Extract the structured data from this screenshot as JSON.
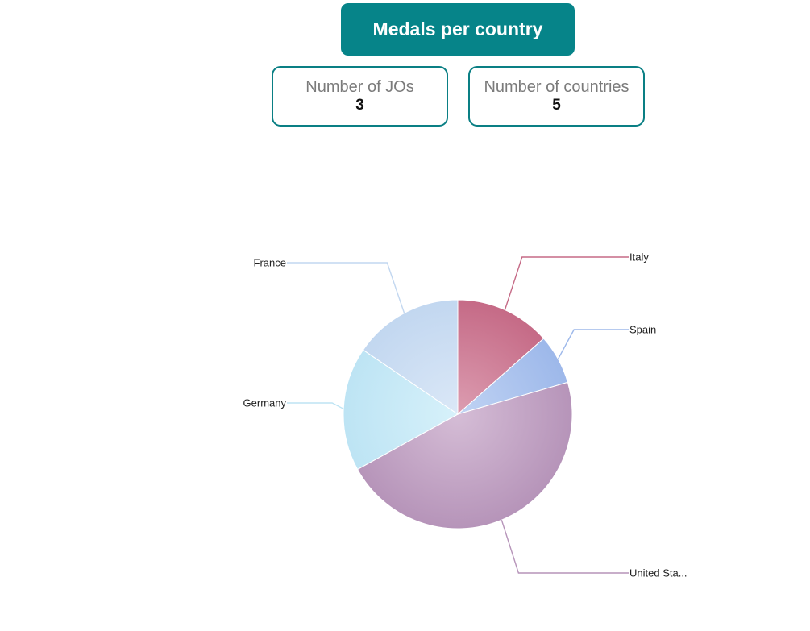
{
  "header": {
    "title": "Medals per country"
  },
  "kpis": {
    "jos_label": "Number of JOs",
    "jos_value": "3",
    "countries_label": "Number of countries",
    "countries_value": "5"
  },
  "chart_data": {
    "type": "pie",
    "title": "",
    "slices": [
      {
        "label": "Italy",
        "display_label": "Italy",
        "value": 13.5,
        "color": "#c56a86",
        "gradient_center": "#dc9db1"
      },
      {
        "label": "Spain",
        "display_label": "Spain",
        "value": 7.0,
        "color": "#9db8ea",
        "gradient_center": "#c0d3f3"
      },
      {
        "label": "United States",
        "display_label": "United Sta...",
        "value": 46.5,
        "color": "#b694b9",
        "gradient_center": "#d5bdd6"
      },
      {
        "label": "Germany",
        "display_label": "Germany",
        "value": 17.5,
        "color": "#bde4f4",
        "gradient_center": "#d7f1fa"
      },
      {
        "label": "France",
        "display_label": "France",
        "value": 15.5,
        "color": "#c2d7f0",
        "gradient_center": "#dbe8f7"
      }
    ]
  }
}
